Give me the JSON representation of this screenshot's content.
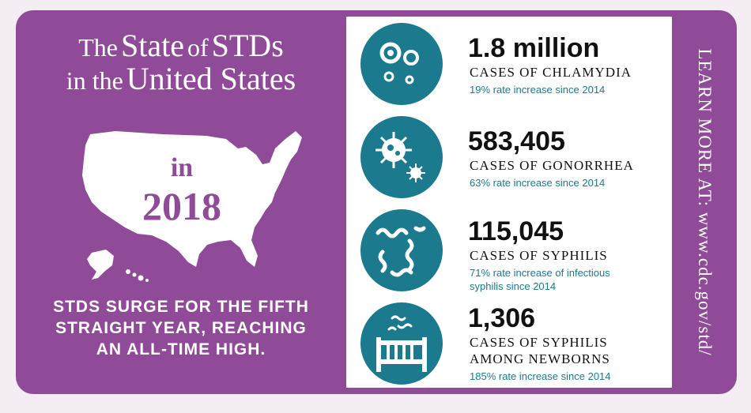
{
  "title": {
    "line1_prefix": "The",
    "line1_main": "State",
    "line1_of": "of",
    "line1_end": "STDs",
    "line2_prefix": "in the",
    "line2_main": "United States"
  },
  "year": {
    "prefix": "in",
    "value": "2018"
  },
  "tagline": {
    "line1": "STDS SURGE FOR THE FIFTH",
    "line2": "STRAIGHT YEAR, REACHING",
    "line3": "AN ALL-TIME HIGH."
  },
  "stats": [
    {
      "number": "1.8 million",
      "label": "CASES OF CHLAMYDIA",
      "note1": "19% rate increase since 2014",
      "note2": "",
      "icon": "chlamydia-cells-icon"
    },
    {
      "number": "583,405",
      "label": "CASES OF GONORRHEA",
      "note1": "63% rate increase since 2014",
      "note2": "",
      "icon": "gonorrhea-bacteria-icon"
    },
    {
      "number": "115,045",
      "label": "CASES OF SYPHILIS",
      "note1": "71% rate increase of infectious",
      "note2": "syphilis since 2014",
      "icon": "syphilis-spirochete-icon"
    },
    {
      "number": "1,306",
      "label1": "CASES OF SYPHILIS",
      "label2": "AMONG NEWBORNS",
      "note1": "185% rate increase since 2014",
      "icon": "crib-icon"
    }
  ],
  "learn_more": "LEARN MORE AT: www.cdc.gov/std/",
  "colors": {
    "purple": "#8f4b97",
    "teal": "#1b7a8e",
    "white": "#ffffff"
  }
}
